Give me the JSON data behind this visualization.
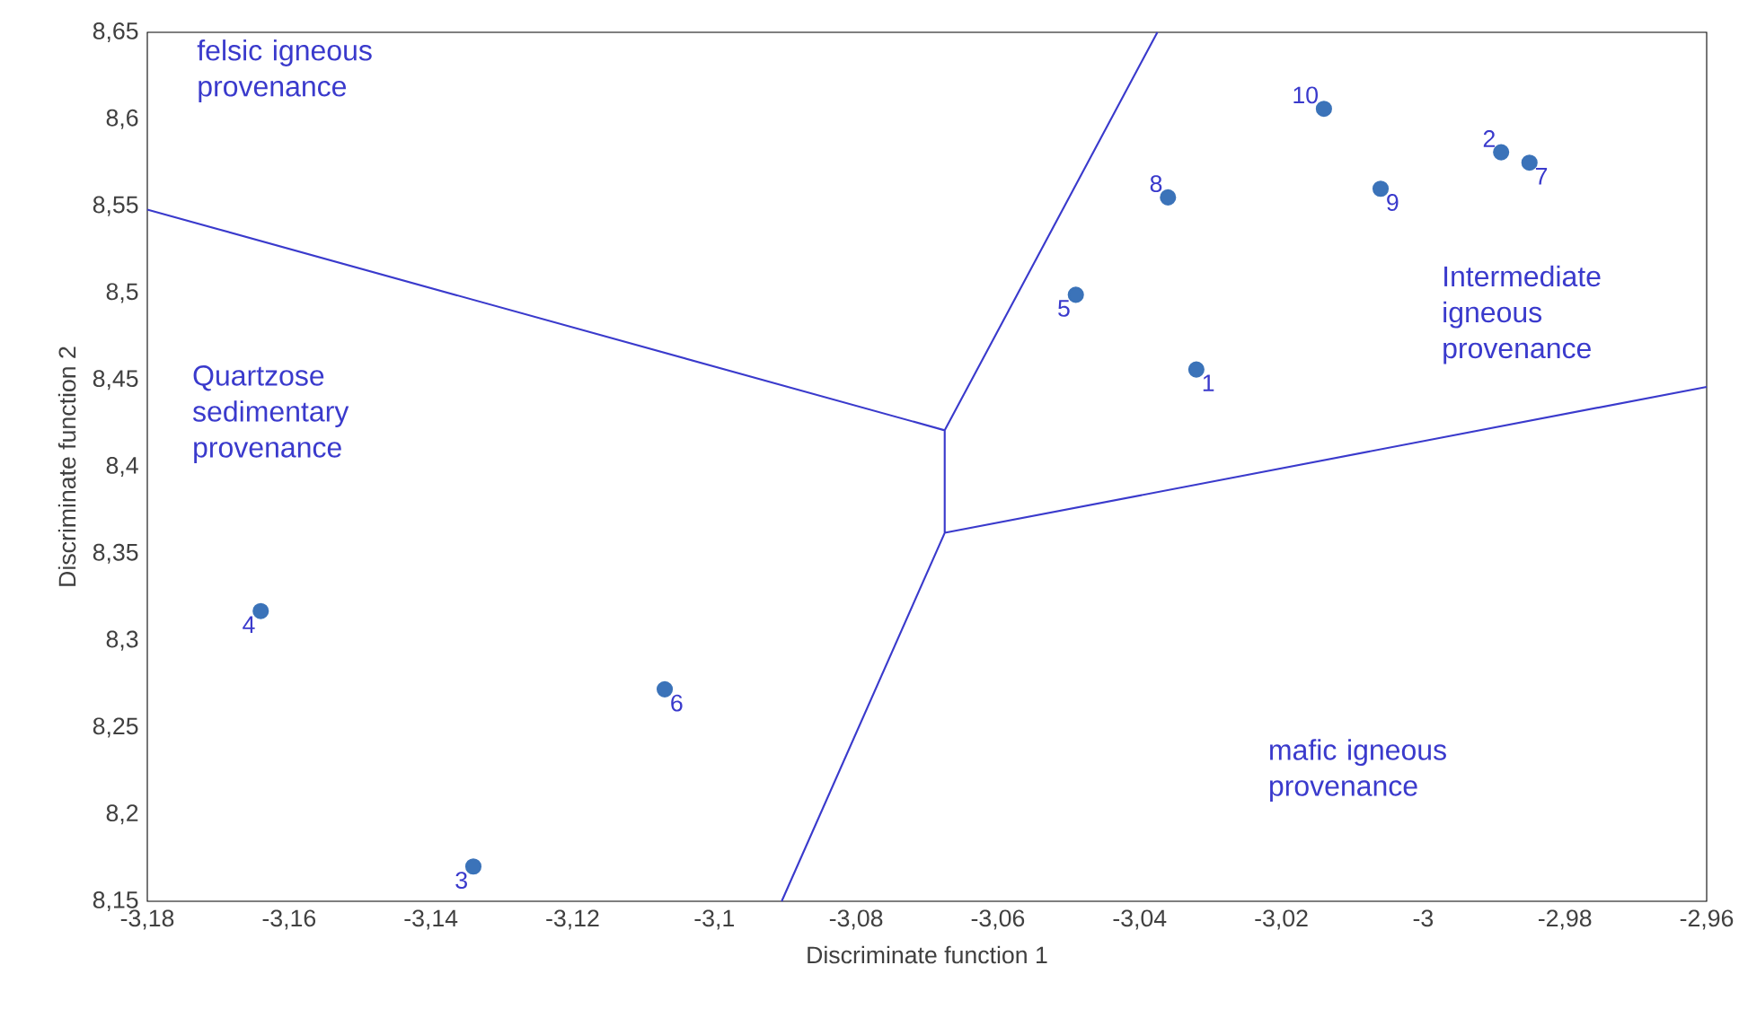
{
  "chart_data": {
    "type": "scatter",
    "xlabel": "Discriminate function 1",
    "ylabel": "Discriminate function 2",
    "xlim": [
      -3.18,
      -2.96
    ],
    "ylim": [
      8.15,
      8.65
    ],
    "xticks": [
      {
        "value": -3.18,
        "label": "-3,18"
      },
      {
        "value": -3.16,
        "label": "-3,16"
      },
      {
        "value": -3.14,
        "label": "-3,14"
      },
      {
        "value": -3.12,
        "label": "-3,12"
      },
      {
        "value": -3.1,
        "label": "-3,1"
      },
      {
        "value": -3.08,
        "label": "-3,08"
      },
      {
        "value": -3.06,
        "label": "-3,06"
      },
      {
        "value": -3.04,
        "label": "-3,04"
      },
      {
        "value": -3.02,
        "label": "-3,02"
      },
      {
        "value": -3.0,
        "label": "-3"
      },
      {
        "value": -2.98,
        "label": "-2,98"
      },
      {
        "value": -2.96,
        "label": "-2,96"
      }
    ],
    "yticks": [
      {
        "value": 8.15,
        "label": "8,15"
      },
      {
        "value": 8.2,
        "label": "8,2"
      },
      {
        "value": 8.25,
        "label": "8,25"
      },
      {
        "value": 8.3,
        "label": "8,3"
      },
      {
        "value": 8.35,
        "label": "8,35"
      },
      {
        "value": 8.4,
        "label": "8,4"
      },
      {
        "value": 8.45,
        "label": "8,45"
      },
      {
        "value": 8.5,
        "label": "8,5"
      },
      {
        "value": 8.55,
        "label": "8,55"
      },
      {
        "value": 8.6,
        "label": "8,6"
      },
      {
        "value": 8.65,
        "label": "8,65"
      }
    ],
    "series": [
      {
        "marker": "circle",
        "color": "#3b73b9",
        "x": [
          -3.032,
          -2.989,
          -3.134,
          -3.164,
          -3.049,
          -3.107,
          -2.985,
          -3.036,
          -3.006,
          -3.014
        ],
        "values": [
          8.456,
          8.581,
          8.17,
          8.317,
          8.499,
          8.272,
          8.575,
          8.555,
          8.56,
          8.606
        ]
      },
      {
        "type": "line",
        "marker": "none",
        "color": "#3a3acc",
        "x": [
          -3.18,
          -3.0675,
          -3.0375,
          null,
          -3.0675,
          -3.0675,
          -2.96,
          null,
          -3.0675,
          -3.0905
        ],
        "values": [
          8.548,
          8.421,
          8.65,
          null,
          8.421,
          8.362,
          8.446,
          null,
          8.362,
          8.15
        ]
      }
    ],
    "annotations": [
      {
        "text": "1",
        "x": -3.032,
        "y": 8.456
      },
      {
        "text": "2",
        "x": -2.989,
        "y": 8.581
      },
      {
        "text": "3",
        "x": -3.134,
        "y": 8.17
      },
      {
        "text": "4",
        "x": -3.164,
        "y": 8.317
      },
      {
        "text": "5",
        "x": -3.049,
        "y": 8.499
      },
      {
        "text": "6",
        "x": -3.107,
        "y": 8.272
      },
      {
        "text": "7",
        "x": -2.985,
        "y": 8.575
      },
      {
        "text": "8",
        "x": -3.036,
        "y": 8.555
      },
      {
        "text": "9",
        "x": -3.006,
        "y": 8.56
      },
      {
        "text": "10",
        "x": -3.014,
        "y": 8.606
      },
      "felsic igneous provenance",
      "Quartzose sedimentary provenance",
      "Intermediate igneous provenance",
      "mafic igneous provenance"
    ]
  }
}
